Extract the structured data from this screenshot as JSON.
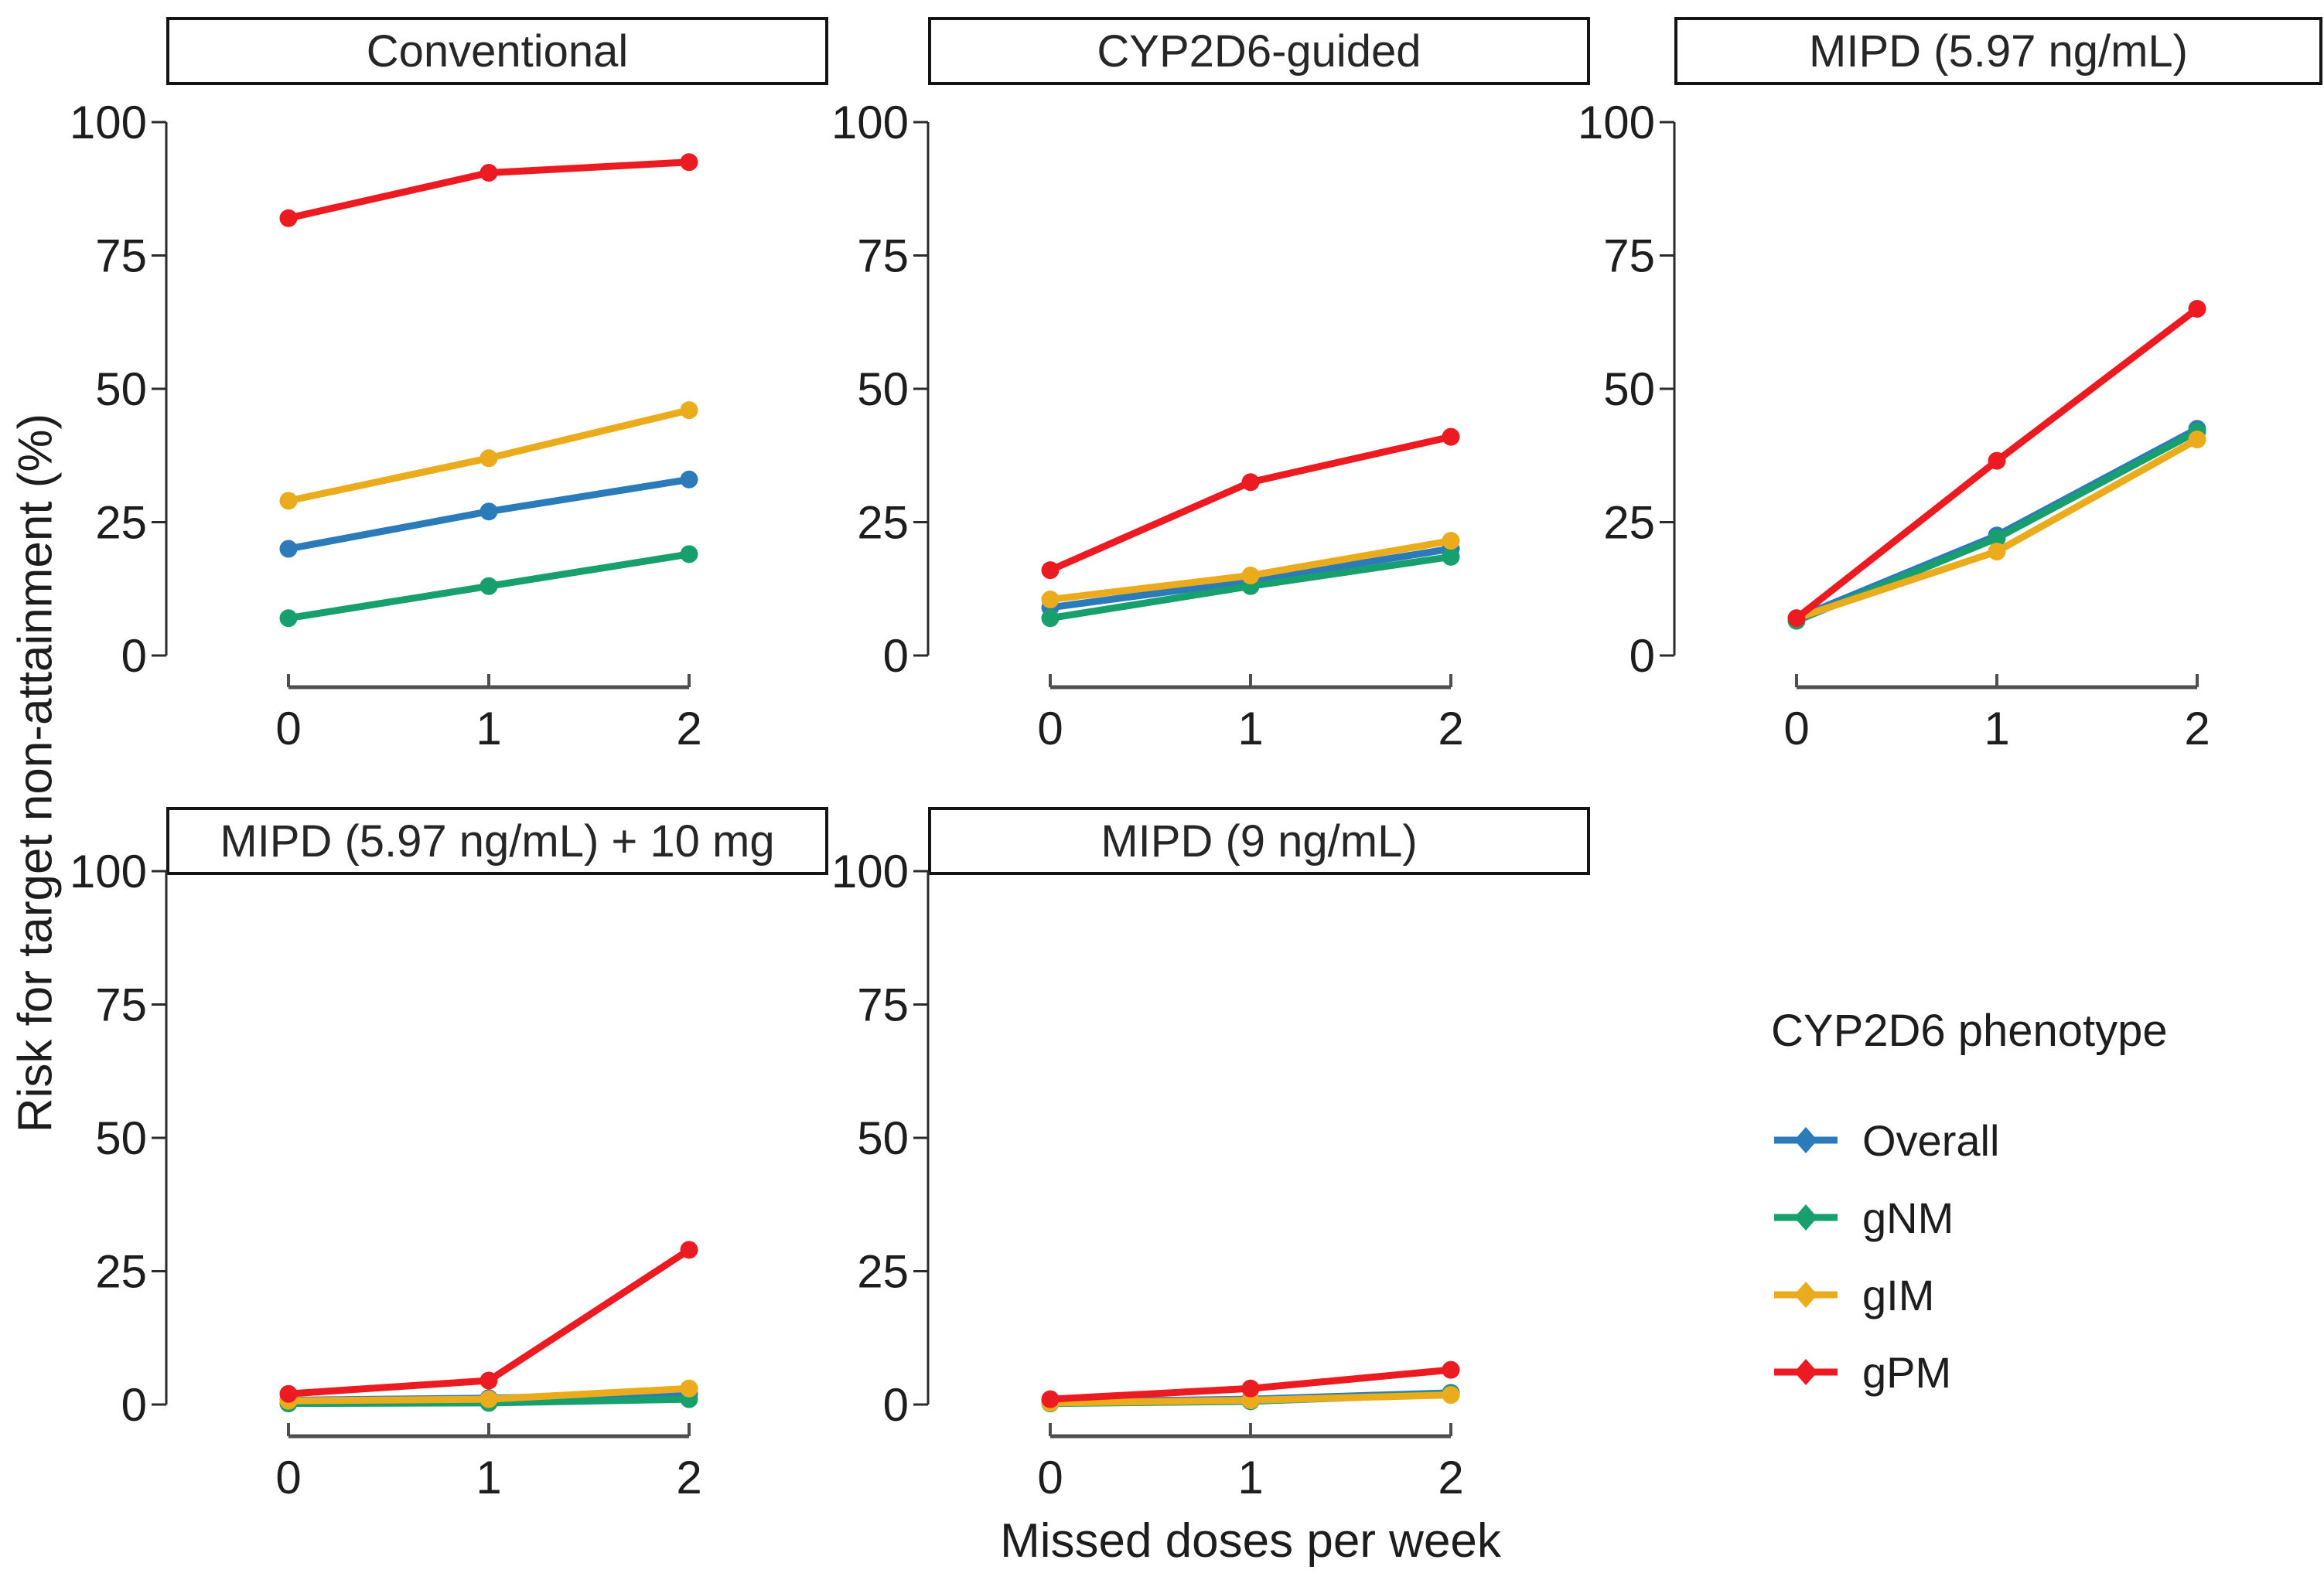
{
  "figure": {
    "y_axis_title": "Risk for target non-attainment (%)",
    "x_axis_title": "Missed doses per week",
    "y_ticks": [
      0,
      25,
      50,
      75,
      100
    ],
    "x_ticks": [
      0,
      1,
      2
    ],
    "axis_color": "#4f4f4f",
    "y_axis_color": "#2b2b2b",
    "text_color": "#1d1d1d"
  },
  "legend": {
    "title": "CYP2D6 phenotype",
    "position": "right-bottom",
    "entries": [
      {
        "label": "Overall",
        "color": "#2B7BBB"
      },
      {
        "label": "gNM",
        "color": "#17A06E"
      },
      {
        "label": "gIM",
        "color": "#EAAC1D"
      },
      {
        "label": "gPM",
        "color": "#EC1B21"
      }
    ]
  },
  "chart_data": [
    {
      "type": "line",
      "title": "Conventional",
      "x": [
        0,
        1,
        2
      ],
      "xlabel": "Missed doses per week",
      "ylabel": "Risk for target non-attainment (%)",
      "ylim": [
        0,
        100
      ],
      "series": [
        {
          "name": "Overall",
          "values": [
            20,
            27,
            33
          ]
        },
        {
          "name": "gNM",
          "values": [
            7,
            13,
            19
          ]
        },
        {
          "name": "gIM",
          "values": [
            29,
            37,
            46
          ]
        },
        {
          "name": "gPM",
          "values": [
            82,
            90.5,
            92.5
          ]
        }
      ]
    },
    {
      "type": "line",
      "title": "CYP2D6-guided",
      "x": [
        0,
        1,
        2
      ],
      "xlabel": "Missed doses per week",
      "ylabel": "Risk for target non-attainment (%)",
      "ylim": [
        0,
        100
      ],
      "series": [
        {
          "name": "Overall",
          "values": [
            9,
            14,
            20
          ]
        },
        {
          "name": "gNM",
          "values": [
            7,
            13,
            18.5
          ]
        },
        {
          "name": "gIM",
          "values": [
            10.5,
            15,
            21.5
          ]
        },
        {
          "name": "gPM",
          "values": [
            16,
            32.5,
            41
          ]
        }
      ]
    },
    {
      "type": "line",
      "title": "MIPD (5.97 ng/mL)",
      "x": [
        0,
        1,
        2
      ],
      "xlabel": "Missed doses per week",
      "ylabel": "Risk for target non-attainment (%)",
      "ylim": [
        0,
        100
      ],
      "series": [
        {
          "name": "Overall",
          "values": [
            7,
            22.5,
            42.5
          ]
        },
        {
          "name": "gNM",
          "values": [
            6.5,
            22,
            42
          ]
        },
        {
          "name": "gIM",
          "values": [
            7,
            19.5,
            40.5
          ]
        },
        {
          "name": "gPM",
          "values": [
            7,
            36.5,
            65
          ]
        }
      ]
    },
    {
      "type": "line",
      "title": "MIPD (5.97 ng/mL) + 10 mg",
      "x": [
        0,
        1,
        2
      ],
      "xlabel": "Missed doses per week",
      "ylabel": "Risk for target non-attainment (%)",
      "ylim": [
        0,
        100
      ],
      "series": [
        {
          "name": "Overall",
          "values": [
            0.8,
            1.2,
            2
          ]
        },
        {
          "name": "gNM",
          "values": [
            0.2,
            0.3,
            1
          ]
        },
        {
          "name": "gIM",
          "values": [
            0.7,
            1,
            3
          ]
        },
        {
          "name": "gPM",
          "values": [
            2,
            4.5,
            29
          ]
        }
      ]
    },
    {
      "type": "line",
      "title": "MIPD (9 ng/mL)",
      "x": [
        0,
        1,
        2
      ],
      "xlabel": "Missed doses per week",
      "ylabel": "Risk for target non-attainment (%)",
      "ylim": [
        0,
        100
      ],
      "series": [
        {
          "name": "Overall",
          "values": [
            0.5,
            1,
            2.2
          ]
        },
        {
          "name": "gNM",
          "values": [
            0.2,
            0.6,
            2
          ]
        },
        {
          "name": "gIM",
          "values": [
            0.3,
            0.8,
            1.8
          ]
        },
        {
          "name": "gPM",
          "values": [
            1,
            3,
            6.5
          ]
        }
      ]
    }
  ]
}
